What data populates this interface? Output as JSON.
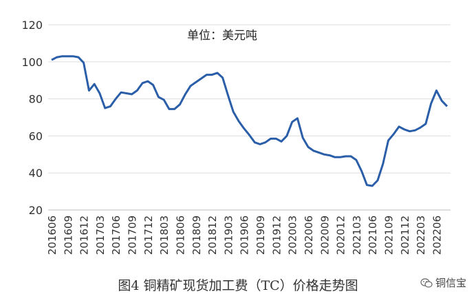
{
  "chart_data": {
    "type": "line",
    "title": "单位：美元吨",
    "xlabel": "",
    "ylabel": "",
    "ylim": [
      20,
      120
    ],
    "yticks": [
      "20",
      "40",
      "60",
      "80",
      "100",
      "120"
    ],
    "grid": true,
    "xtick_labels": [
      "201606",
      "201609",
      "201612",
      "201703",
      "201706",
      "201709",
      "201712",
      "201803",
      "201806",
      "201809",
      "201812",
      "201903",
      "201906",
      "201909",
      "201912",
      "202003",
      "202006",
      "202009",
      "202012",
      "202103",
      "202106",
      "202109",
      "202112",
      "202203",
      "202206"
    ],
    "series": [
      {
        "color": "#2a5ea8",
        "values": [
          101,
          102.5,
          103,
          103,
          103,
          102.5,
          99.5,
          84.5,
          88,
          83,
          75,
          76,
          80,
          83.5,
          83,
          82.5,
          84.5,
          88.5,
          89.5,
          87.5,
          81,
          79.5,
          74.5,
          74.5,
          77,
          82.5,
          87,
          89,
          91,
          93,
          93,
          94,
          91.5,
          82,
          73,
          68,
          64,
          60.5,
          56.5,
          55.5,
          56.5,
          58.5,
          58.5,
          57,
          60,
          67.5,
          69.5,
          59,
          54,
          52,
          51,
          50,
          49.5,
          48.5,
          48.5,
          49,
          49,
          47,
          41,
          33.5,
          33,
          36,
          45,
          57.5,
          61,
          65,
          63.5,
          62.5,
          63,
          64.5,
          66.5,
          77.5,
          84.5,
          79,
          76
        ]
      }
    ]
  },
  "caption": "图4 铜精矿现货加工费（TC）价格走势图",
  "watermark": "铜信宝"
}
